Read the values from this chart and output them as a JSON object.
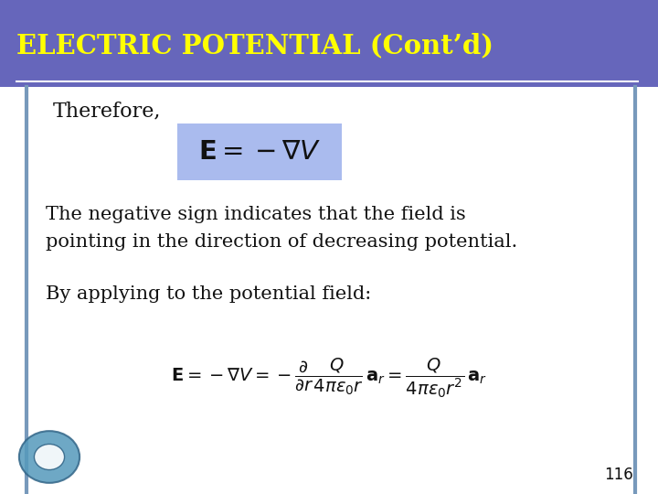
{
  "title": "ELECTRIC POTENTIAL (Cont’d)",
  "title_color": "#FFFF00",
  "header_bg_color": "#6666BB",
  "header_line_color": "#FFFFFF",
  "body_bg_color": "#FFFFFF",
  "border_color": "#7799BB",
  "text_color": "#111111",
  "therefore_text": "Therefore,",
  "eq1_latex": "$\\mathbf{E} = -\\nabla V$",
  "eq1_box_color": "#AABBEE",
  "body_text1a": "The negative sign indicates that the field is",
  "body_text1b": "pointing in the direction of decreasing potential.",
  "body_text2": "By applying to the potential field:",
  "eq2_latex": "$\\mathbf{E} = -\\nabla V = -\\dfrac{\\partial}{\\partial r}\\dfrac{Q}{4\\pi\\varepsilon_0 r}\\,\\mathbf{a}_r = \\dfrac{Q}{4\\pi\\varepsilon_0 r^2}\\,\\mathbf{a}_r$",
  "page_number": "116",
  "figsize": [
    7.2,
    5.4
  ],
  "dpi": 100
}
